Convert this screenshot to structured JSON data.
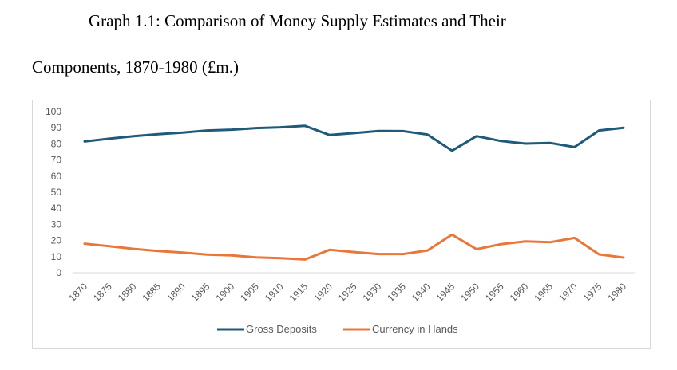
{
  "title": {
    "line1": "Graph 1.1: Comparison of Money Supply Estimates and Their",
    "line2": "Components, 1870-1980 (£m.)"
  },
  "chart_data": {
    "type": "line",
    "title": "Graph 1.1: Comparison of Money Supply Estimates and Their Components, 1870-1980 (£m.)",
    "x": [
      "1870",
      "1875",
      "1880",
      "1885",
      "1890",
      "1895",
      "1900",
      "1905",
      "1910",
      "1915",
      "1920",
      "1925",
      "1930",
      "1935",
      "1940",
      "1945",
      "1950",
      "1955",
      "1960",
      "1965",
      "1970",
      "1975",
      "1980"
    ],
    "ylim": [
      0,
      100
    ],
    "yticks": [
      0,
      10,
      20,
      30,
      40,
      50,
      60,
      70,
      80,
      90,
      100
    ],
    "grid": false,
    "legend_position": "bottom",
    "series": [
      {
        "name": "Gross Deposits",
        "color": "#1f5a7a",
        "values": [
          81.5,
          83.2,
          84.8,
          86.0,
          87.0,
          88.3,
          88.8,
          89.8,
          90.3,
          91.2,
          85.5,
          86.7,
          88.0,
          87.9,
          85.8,
          75.8,
          84.8,
          81.8,
          80.2,
          80.6,
          78.0,
          88.3,
          90.0
        ]
      },
      {
        "name": "Currency in Hands",
        "color": "#e8773a",
        "values": [
          18.0,
          16.5,
          14.8,
          13.5,
          12.5,
          11.3,
          10.8,
          9.5,
          9.0,
          8.2,
          14.2,
          12.8,
          11.6,
          11.6,
          13.8,
          23.6,
          14.6,
          17.7,
          19.4,
          18.9,
          21.6,
          11.4,
          9.4
        ]
      }
    ]
  }
}
